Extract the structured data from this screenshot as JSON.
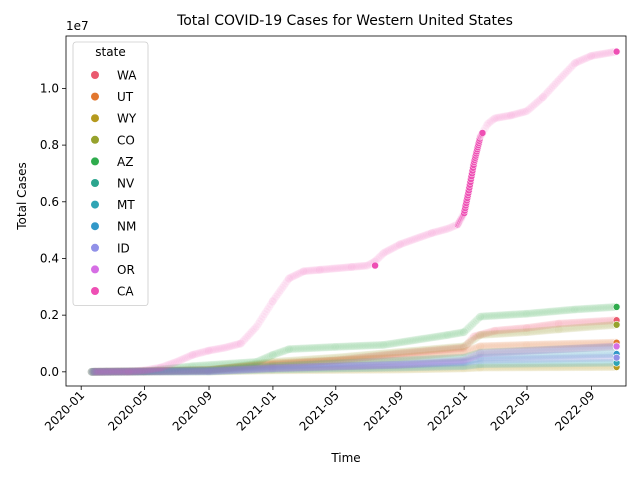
{
  "chart_data": {
    "type": "scatter",
    "title": "Total COVID-19 Cases for Western United States",
    "xlabel": "Time",
    "ylabel": "Total Cases",
    "y_multiplier_label": "1e7",
    "x_ticks": [
      "2020-01",
      "2020-05",
      "2020-09",
      "2021-01",
      "2021-05",
      "2021-09",
      "2022-01",
      "2022-05",
      "2022-09"
    ],
    "y_ticks": [
      {
        "value": 0,
        "label": "0.0"
      },
      {
        "value": 0.2,
        "label": "0.2"
      },
      {
        "value": 0.4,
        "label": "0.4"
      },
      {
        "value": 0.6,
        "label": "0.6"
      },
      {
        "value": 0.8,
        "label": "0.8"
      },
      {
        "value": 1.0,
        "label": "1.0"
      }
    ],
    "x_range": [
      "2019-12-03",
      "2022-11-06"
    ],
    "y_range": [
      -0.05,
      1.185
    ],
    "y_units": "1e7 cases",
    "grid": false,
    "legend": {
      "title": "state",
      "placement": "top-left"
    },
    "series": [
      {
        "name": "WA",
        "color": "#ea5a6f",
        "points": [
          [
            "2020-01-21",
            0
          ],
          [
            "2020-05-01",
            0.002
          ],
          [
            "2020-09-01",
            0.008
          ],
          [
            "2021-01-01",
            0.025
          ],
          [
            "2021-05-01",
            0.04
          ],
          [
            "2021-09-01",
            0.065
          ],
          [
            "2022-01-01",
            0.085
          ],
          [
            "2022-01-20",
            0.125
          ],
          [
            "2022-03-01",
            0.145
          ],
          [
            "2022-05-01",
            0.155
          ],
          [
            "2022-07-01",
            0.17
          ],
          [
            "2022-10-19",
            0.182
          ]
        ]
      },
      {
        "name": "UT",
        "color": "#e2772f",
        "points": [
          [
            "2020-01-21",
            0
          ],
          [
            "2020-05-01",
            0.001
          ],
          [
            "2020-09-01",
            0.006
          ],
          [
            "2021-01-01",
            0.03
          ],
          [
            "2021-05-01",
            0.04
          ],
          [
            "2021-09-01",
            0.05
          ],
          [
            "2022-01-01",
            0.07
          ],
          [
            "2022-02-01",
            0.09
          ],
          [
            "2022-05-01",
            0.095
          ],
          [
            "2022-10-19",
            0.103
          ]
        ]
      },
      {
        "name": "WY",
        "color": "#b59a1e",
        "points": [
          [
            "2020-01-21",
            0
          ],
          [
            "2020-09-01",
            0.001
          ],
          [
            "2021-01-01",
            0.005
          ],
          [
            "2021-09-01",
            0.008
          ],
          [
            "2022-01-01",
            0.012
          ],
          [
            "2022-02-01",
            0.015
          ],
          [
            "2022-10-19",
            0.017
          ]
        ]
      },
      {
        "name": "CO",
        "color": "#96a22d",
        "points": [
          [
            "2020-01-21",
            0
          ],
          [
            "2020-05-01",
            0.002
          ],
          [
            "2020-09-01",
            0.006
          ],
          [
            "2021-01-01",
            0.035
          ],
          [
            "2021-05-01",
            0.05
          ],
          [
            "2021-09-01",
            0.07
          ],
          [
            "2022-01-01",
            0.09
          ],
          [
            "2022-02-01",
            0.13
          ],
          [
            "2022-05-01",
            0.14
          ],
          [
            "2022-07-01",
            0.15
          ],
          [
            "2022-10-19",
            0.166
          ]
        ]
      },
      {
        "name": "AZ",
        "color": "#2fac4d",
        "points": [
          [
            "2020-01-21",
            0
          ],
          [
            "2020-05-01",
            0.002
          ],
          [
            "2020-08-01",
            0.02
          ],
          [
            "2020-12-01",
            0.035
          ],
          [
            "2021-01-01",
            0.06
          ],
          [
            "2021-02-01",
            0.08
          ],
          [
            "2021-05-01",
            0.088
          ],
          [
            "2021-08-01",
            0.095
          ],
          [
            "2021-12-01",
            0.13
          ],
          [
            "2022-01-01",
            0.14
          ],
          [
            "2022-02-01",
            0.195
          ],
          [
            "2022-05-01",
            0.205
          ],
          [
            "2022-08-01",
            0.22
          ],
          [
            "2022-10-19",
            0.229
          ]
        ]
      },
      {
        "name": "NV",
        "color": "#2ca58e",
        "points": [
          [
            "2020-01-21",
            0
          ],
          [
            "2020-09-01",
            0.005
          ],
          [
            "2021-01-01",
            0.02
          ],
          [
            "2021-09-01",
            0.04
          ],
          [
            "2022-01-01",
            0.05
          ],
          [
            "2022-02-01",
            0.068
          ],
          [
            "2022-10-19",
            0.088
          ]
        ]
      },
      {
        "name": "MT",
        "color": "#2fa4b4",
        "points": [
          [
            "2020-01-21",
            0
          ],
          [
            "2020-09-01",
            0.001
          ],
          [
            "2021-01-01",
            0.008
          ],
          [
            "2021-09-01",
            0.015
          ],
          [
            "2022-01-01",
            0.02
          ],
          [
            "2022-02-01",
            0.027
          ],
          [
            "2022-10-19",
            0.032
          ]
        ]
      },
      {
        "name": "NM",
        "color": "#3298c8",
        "points": [
          [
            "2020-01-21",
            0
          ],
          [
            "2020-09-01",
            0.002
          ],
          [
            "2021-01-01",
            0.013
          ],
          [
            "2021-09-01",
            0.025
          ],
          [
            "2022-01-01",
            0.035
          ],
          [
            "2022-02-01",
            0.05
          ],
          [
            "2022-10-19",
            0.063
          ]
        ]
      },
      {
        "name": "ID",
        "color": "#9191e8",
        "points": [
          [
            "2020-01-21",
            0
          ],
          [
            "2020-09-01",
            0.003
          ],
          [
            "2021-01-01",
            0.013
          ],
          [
            "2021-09-01",
            0.025
          ],
          [
            "2022-01-01",
            0.032
          ],
          [
            "2022-02-01",
            0.042
          ],
          [
            "2022-10-19",
            0.05
          ]
        ]
      },
      {
        "name": "OR",
        "color": "#d66ee4",
        "points": [
          [
            "2020-01-21",
            0
          ],
          [
            "2020-09-01",
            0.002
          ],
          [
            "2021-01-01",
            0.012
          ],
          [
            "2021-09-01",
            0.025
          ],
          [
            "2022-01-01",
            0.04
          ],
          [
            "2022-02-01",
            0.065
          ],
          [
            "2022-10-19",
            0.09
          ]
        ]
      },
      {
        "name": "CA",
        "color": "#ee4fb4",
        "points": [
          [
            "2020-01-25",
            0
          ],
          [
            "2020-03-01",
            0.001
          ],
          [
            "2020-04-01",
            0.001
          ],
          [
            "2020-05-01",
            0.005
          ],
          [
            "2020-06-01",
            0.015
          ],
          [
            "2020-07-01",
            0.035
          ],
          [
            "2020-08-01",
            0.06
          ],
          [
            "2020-09-01",
            0.075
          ],
          [
            "2020-10-01",
            0.085
          ],
          [
            "2020-11-01",
            0.1
          ],
          [
            "2020-12-01",
            0.16
          ],
          [
            "2021-01-01",
            0.25
          ],
          [
            "2021-02-01",
            0.33
          ],
          [
            "2021-03-01",
            0.355
          ],
          [
            "2021-04-01",
            0.36
          ],
          [
            "2021-05-01",
            0.365
          ],
          [
            "2021-06-01",
            0.37
          ],
          [
            "2021-07-01",
            0.375
          ],
          [
            "2021-07-15",
            0.39
          ],
          [
            "2021-08-01",
            0.42
          ],
          [
            "2021-09-01",
            0.45
          ],
          [
            "2021-10-01",
            0.47
          ],
          [
            "2021-11-01",
            0.49
          ],
          [
            "2021-12-01",
            0.505
          ],
          [
            "2021-12-20",
            0.52
          ],
          [
            "2022-01-01",
            0.56
          ],
          [
            "2022-01-10",
            0.64
          ],
          [
            "2022-01-20",
            0.74
          ],
          [
            "2022-02-01",
            0.83
          ],
          [
            "2022-02-15",
            0.875
          ],
          [
            "2022-03-01",
            0.895
          ],
          [
            "2022-04-01",
            0.905
          ],
          [
            "2022-05-01",
            0.92
          ],
          [
            "2022-06-01",
            0.97
          ],
          [
            "2022-07-01",
            1.03
          ],
          [
            "2022-08-01",
            1.09
          ],
          [
            "2022-09-01",
            1.115
          ],
          [
            "2022-10-19",
            1.13
          ]
        ]
      }
    ]
  }
}
